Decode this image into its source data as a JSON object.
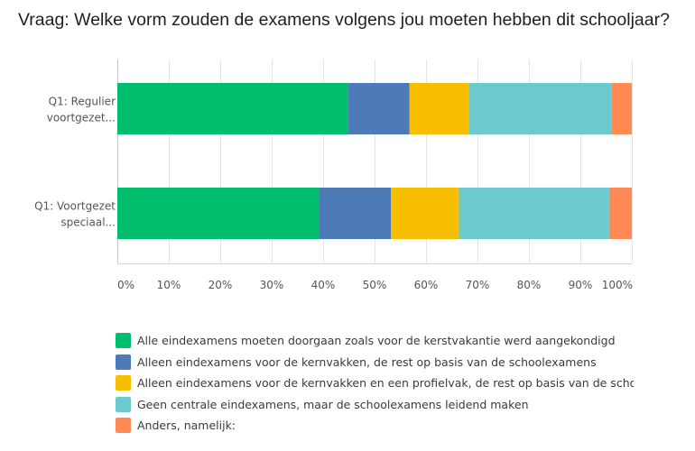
{
  "chart_data": {
    "type": "bar",
    "orientation": "horizontal",
    "stacked": true,
    "title": "Vraag: Welke vorm zouden de examens volgens jou moeten hebben dit schooljaar?",
    "categories": [
      "Q1: Regulier voortgezet...",
      "Q1: Voortgezet speciaal..."
    ],
    "category_lines": [
      [
        "Q1: Regulier",
        "voortgezet..."
      ],
      [
        "Q1: Voortgezet",
        "speciaal..."
      ]
    ],
    "xlim": [
      0,
      100
    ],
    "x_ticks": [
      "0%",
      "10%",
      "20%",
      "30%",
      "40%",
      "50%",
      "60%",
      "70%",
      "80%",
      "90%",
      "100%"
    ],
    "grid": true,
    "legend_position": "bottom",
    "series": [
      {
        "name": "Alle eindexamens moeten doorgaan zoals voor de kerstvakantie werd aangekondigd",
        "color": "#00be6e",
        "values": [
          44.8,
          39.2
        ]
      },
      {
        "name": "Alleen eindexamens voor de kernvakken, de rest op basis van de schoolexamens",
        "color": "#4f7ab8",
        "values": [
          12.0,
          14.0
        ]
      },
      {
        "name": "Alleen eindexamens voor de kernvakken en een profielvak, de rest op basis van de schoolexamens",
        "color": "#f7bf00",
        "values": [
          11.5,
          13.2
        ]
      },
      {
        "name": "Geen centrale eindexamens, maar de schoolexamens leidend maken",
        "color": "#6ccacf",
        "values": [
          27.7,
          29.2
        ]
      },
      {
        "name": "Anders, namelijk:",
        "color": "#ff8a55",
        "values": [
          4.0,
          4.4
        ]
      }
    ]
  }
}
